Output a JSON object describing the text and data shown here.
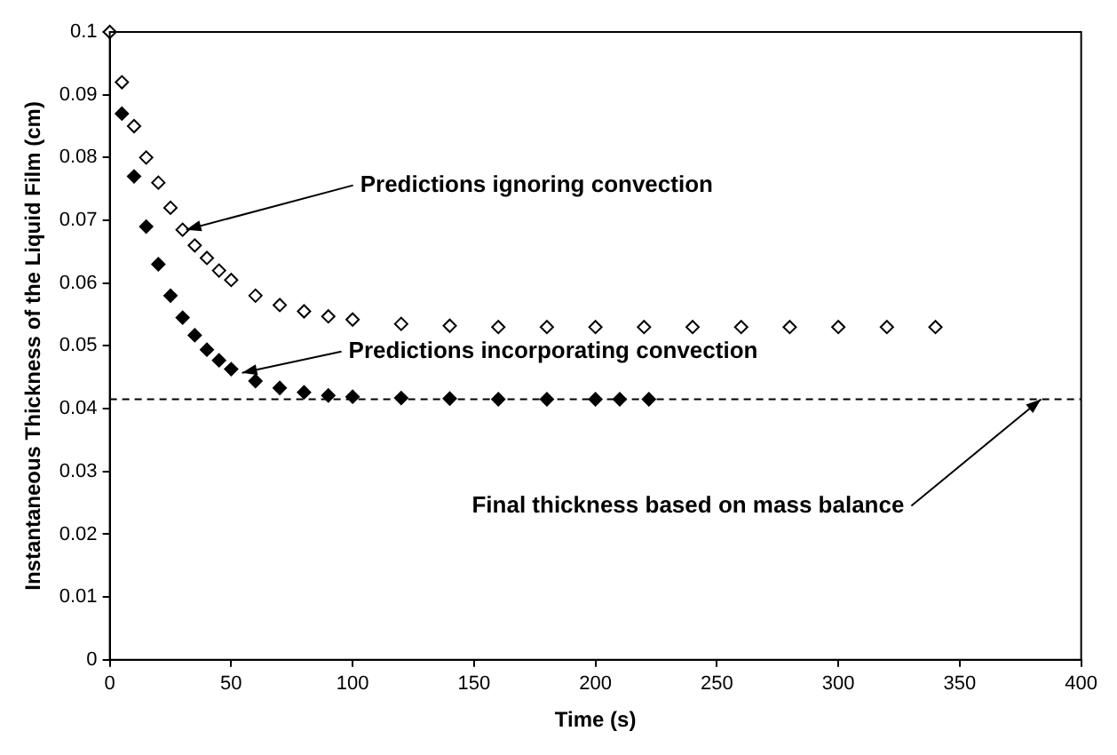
{
  "chart_data": {
    "type": "scatter",
    "xlabel": "Time (s)",
    "ylabel": "Instantaneous Thickness of the Liquid Film (cm)",
    "xlim": [
      0,
      400
    ],
    "xticks": [
      0,
      50,
      100,
      150,
      200,
      250,
      300,
      350,
      400
    ],
    "ylim": [
      0,
      0.1
    ],
    "yticks": [
      0,
      0.01,
      0.02,
      0.03,
      0.04,
      0.05,
      0.06,
      0.07,
      0.08,
      0.09,
      0.1
    ],
    "grid": false,
    "legend": false,
    "marker": "diamond",
    "series": [
      {
        "color": "#000000",
        "x": [
          0,
          5,
          10,
          15,
          20,
          25,
          30,
          35,
          40,
          45,
          50,
          60,
          70,
          80,
          90,
          100,
          120,
          140,
          160,
          180,
          200,
          220,
          240,
          260,
          280,
          300,
          320,
          340
        ],
        "values": [
          0.1,
          0.092,
          0.085,
          0.08,
          0.076,
          0.072,
          0.0685,
          0.066,
          0.064,
          0.062,
          0.0605,
          0.058,
          0.0565,
          0.0555,
          0.0547,
          0.0542,
          0.0535,
          0.0532,
          0.053,
          0.053,
          0.053,
          0.053,
          0.053,
          0.053,
          0.053,
          0.053,
          0.053,
          0.053
        ]
      },
      {
        "color": "#000000",
        "x": [
          5,
          10,
          15,
          20,
          25,
          30,
          35,
          40,
          45,
          50,
          60,
          70,
          80,
          90,
          100,
          120,
          140,
          160,
          180,
          200,
          210,
          222
        ],
        "values": [
          0.087,
          0.077,
          0.069,
          0.063,
          0.058,
          0.0545,
          0.0517,
          0.0494,
          0.0477,
          0.0463,
          0.0444,
          0.0433,
          0.0426,
          0.0421,
          0.0419,
          0.0417,
          0.0416,
          0.0415,
          0.0415,
          0.0415,
          0.0415,
          0.0415
        ]
      }
    ],
    "ref_lines": [
      {
        "axis": "y",
        "value": 0.0415,
        "line_style": "dashed",
        "color": "#000000"
      }
    ],
    "annotations": [
      {
        "text": "Predictions ignoring convection",
        "x": 30,
        "y": 0.0685
      },
      {
        "text": "Predictions incorporating convection",
        "x": 53,
        "y": 0.0457
      },
      {
        "text": "Final thickness based on mass balance",
        "x": 382,
        "y": 0.0415
      }
    ]
  }
}
